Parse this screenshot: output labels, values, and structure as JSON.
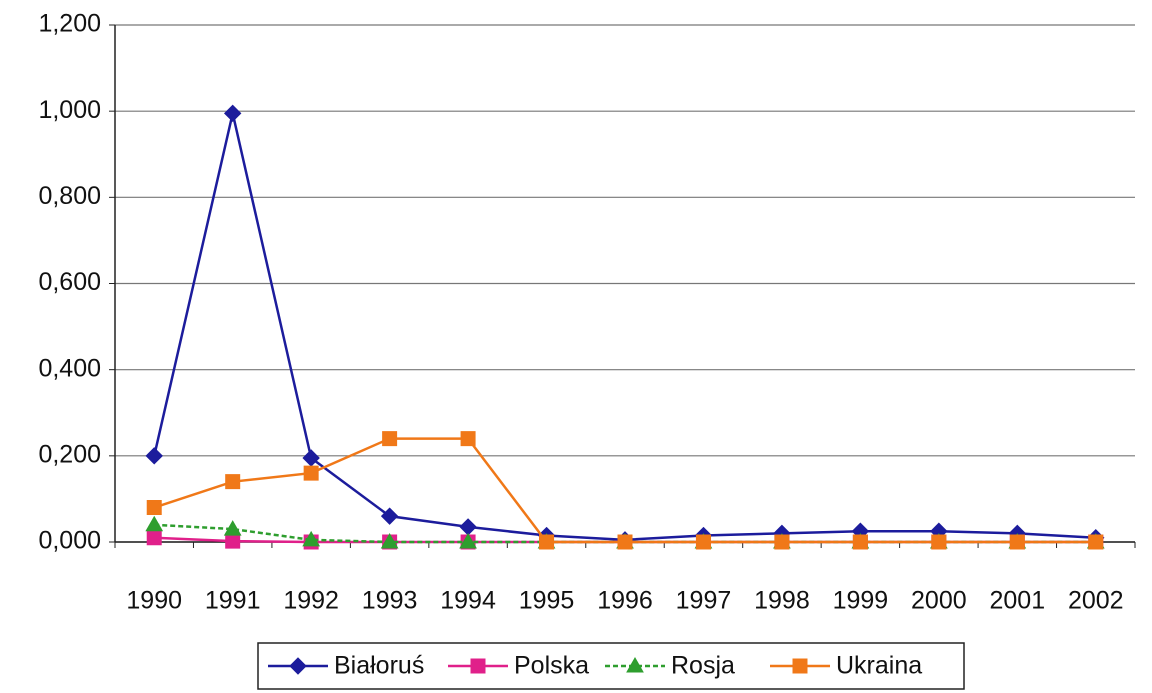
{
  "chart_data": {
    "type": "line",
    "categories": [
      "1990",
      "1991",
      "1992",
      "1993",
      "1994",
      "1995",
      "1996",
      "1997",
      "1998",
      "1999",
      "2000",
      "2001",
      "2002"
    ],
    "series": [
      {
        "name": "Białoruś",
        "color": "#1c1c9c",
        "marker": "diamond",
        "values": [
          0.2,
          0.995,
          0.195,
          0.06,
          0.035,
          0.015,
          0.005,
          0.015,
          0.02,
          0.025,
          0.025,
          0.02,
          0.01
        ]
      },
      {
        "name": "Polska",
        "color": "#e0208a",
        "marker": "square",
        "values": [
          0.01,
          0.002,
          0.0,
          0.0,
          0.0,
          0.0,
          0.0,
          0.0,
          0.0,
          0.0,
          0.0,
          0.0,
          0.0
        ]
      },
      {
        "name": "Rosja",
        "color": "#2e9e2e",
        "marker": "triangle",
        "dashed": true,
        "values": [
          0.04,
          0.03,
          0.005,
          0.0,
          0.0,
          0.0,
          0.0,
          0.0,
          0.0,
          0.0,
          0.0,
          0.0,
          0.0
        ]
      },
      {
        "name": "Ukraina",
        "color": "#f07818",
        "marker": "square",
        "values": [
          0.08,
          0.14,
          0.16,
          0.24,
          0.24,
          0.0,
          0.0,
          0.0,
          0.0,
          0.0,
          0.0,
          0.0,
          0.0
        ]
      }
    ],
    "ylim": [
      0,
      1.2
    ],
    "yticks": [
      {
        "value": 0,
        "label": "0,000"
      },
      {
        "value": 0.2,
        "label": "0,200"
      },
      {
        "value": 0.4,
        "label": "0,400"
      },
      {
        "value": 0.6,
        "label": "0,600"
      },
      {
        "value": 0.8,
        "label": "0,800"
      },
      {
        "value": 1.0,
        "label": "1,000"
      },
      {
        "value": 1.2,
        "label": "1,200"
      }
    ],
    "grid": true,
    "legend": "bottom"
  }
}
